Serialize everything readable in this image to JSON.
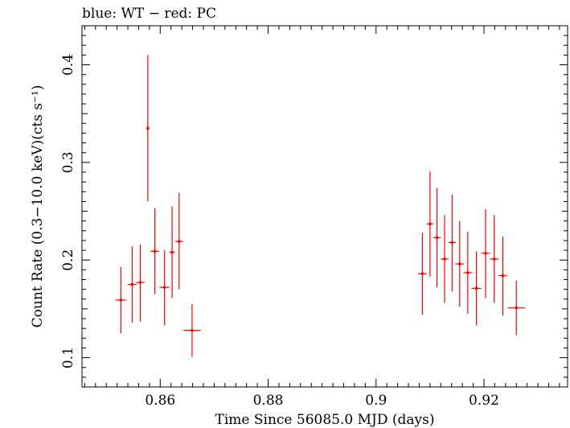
{
  "chart_data": {
    "type": "scatter",
    "title": "blue: WT − red: PC",
    "xlabel": "Time Since 56085.0 MJD (days)",
    "ylabel": "Count Rate (0.3−10.0 keV)(cts s⁻¹)",
    "xlim": [
      0.8455,
      0.9355
    ],
    "ylim": [
      0.07,
      0.44
    ],
    "x_ticks": [
      {
        "value": 0.86,
        "label": "0.86"
      },
      {
        "value": 0.88,
        "label": "0.88"
      },
      {
        "value": 0.9,
        "label": "0.9"
      },
      {
        "value": 0.92,
        "label": "0.92"
      }
    ],
    "y_ticks": [
      {
        "value": 0.1,
        "label": "0.1"
      },
      {
        "value": 0.2,
        "label": "0.2"
      },
      {
        "value": 0.3,
        "label": "0.3"
      },
      {
        "value": 0.4,
        "label": "0.4"
      }
    ],
    "grid": false,
    "series": [
      {
        "color": "#ff0000",
        "points": [
          {
            "x": 0.8527,
            "xerr": 0.001,
            "y": 0.159,
            "ylo": 0.125,
            "yhi": 0.193
          },
          {
            "x": 0.8548,
            "xerr": 0.0008,
            "y": 0.175,
            "ylo": 0.136,
            "yhi": 0.214
          },
          {
            "x": 0.8563,
            "xerr": 0.0008,
            "y": 0.177,
            "ylo": 0.137,
            "yhi": 0.216
          },
          {
            "x": 0.8577,
            "xerr": 0.0002,
            "y": 0.335,
            "ylo": 0.26,
            "yhi": 0.41
          },
          {
            "x": 0.859,
            "xerr": 0.0008,
            "y": 0.209,
            "ylo": 0.165,
            "yhi": 0.253
          },
          {
            "x": 0.8608,
            "xerr": 0.0009,
            "y": 0.172,
            "ylo": 0.133,
            "yhi": 0.21
          },
          {
            "x": 0.8622,
            "xerr": 0.0005,
            "y": 0.208,
            "ylo": 0.161,
            "yhi": 0.255
          },
          {
            "x": 0.8635,
            "xerr": 0.0007,
            "y": 0.219,
            "ylo": 0.17,
            "yhi": 0.269
          },
          {
            "x": 0.8659,
            "xerr": 0.0016,
            "y": 0.128,
            "ylo": 0.101,
            "yhi": 0.155
          },
          {
            "x": 0.9086,
            "xerr": 0.0008,
            "y": 0.186,
            "ylo": 0.144,
            "yhi": 0.228
          },
          {
            "x": 0.91,
            "xerr": 0.0006,
            "y": 0.237,
            "ylo": 0.183,
            "yhi": 0.291
          },
          {
            "x": 0.9113,
            "xerr": 0.0007,
            "y": 0.223,
            "ylo": 0.172,
            "yhi": 0.274
          },
          {
            "x": 0.9127,
            "xerr": 0.0007,
            "y": 0.201,
            "ylo": 0.156,
            "yhi": 0.246
          },
          {
            "x": 0.9141,
            "xerr": 0.0007,
            "y": 0.218,
            "ylo": 0.168,
            "yhi": 0.267
          },
          {
            "x": 0.9155,
            "xerr": 0.0008,
            "y": 0.196,
            "ylo": 0.152,
            "yhi": 0.24
          },
          {
            "x": 0.917,
            "xerr": 0.0008,
            "y": 0.187,
            "ylo": 0.145,
            "yhi": 0.229
          },
          {
            "x": 0.9186,
            "xerr": 0.0009,
            "y": 0.171,
            "ylo": 0.133,
            "yhi": 0.209
          },
          {
            "x": 0.9203,
            "xerr": 0.0008,
            "y": 0.207,
            "ylo": 0.161,
            "yhi": 0.252
          },
          {
            "x": 0.9219,
            "xerr": 0.0008,
            "y": 0.201,
            "ylo": 0.156,
            "yhi": 0.246
          },
          {
            "x": 0.9235,
            "xerr": 0.0008,
            "y": 0.184,
            "ylo": 0.143,
            "yhi": 0.224
          },
          {
            "x": 0.926,
            "xerr": 0.0016,
            "y": 0.151,
            "ylo": 0.123,
            "yhi": 0.179
          }
        ]
      }
    ]
  }
}
